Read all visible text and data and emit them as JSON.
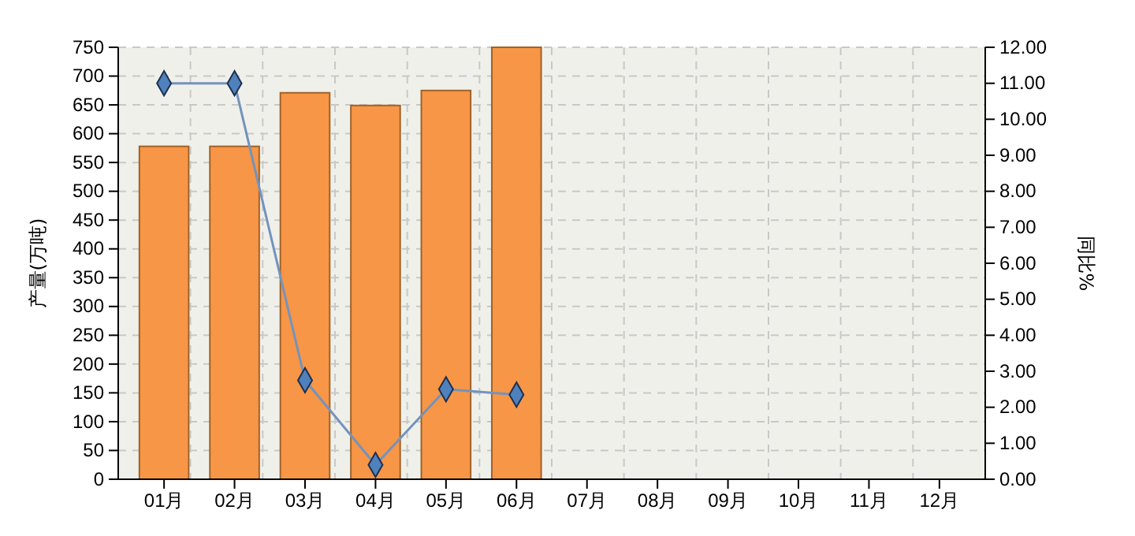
{
  "chart_data": {
    "type": "bar",
    "ylabel": "产量(万吨)",
    "y2label": "同比%",
    "categories": [
      "01月",
      "02月",
      "03月",
      "04月",
      "05月",
      "06月",
      "07月",
      "08月",
      "09月",
      "10月",
      "11月",
      "12月"
    ],
    "series": [
      {
        "color": "#f79646",
        "values": [
          578,
          578,
          671,
          649,
          675,
          750,
          null,
          null,
          null,
          null,
          null,
          null
        ]
      },
      {
        "type": "line",
        "axis": "y2",
        "color": "#7393bd",
        "marker": "diamond",
        "values": [
          11.0,
          11.0,
          2.75,
          0.4,
          2.5,
          2.35,
          null,
          null,
          null,
          null,
          null,
          null
        ]
      }
    ],
    "ylim": [
      0,
      750
    ],
    "yticks": [
      0,
      50,
      100,
      150,
      200,
      250,
      300,
      350,
      400,
      450,
      500,
      550,
      600,
      650,
      700,
      750
    ],
    "y2lim": [
      0,
      12
    ],
    "y2ticks": [
      {
        "value": 0,
        "label": "0.00"
      },
      {
        "value": 1,
        "label": "1.00"
      },
      {
        "value": 2,
        "label": "2.00"
      },
      {
        "value": 3,
        "label": "3.00"
      },
      {
        "value": 4,
        "label": "4.00"
      },
      {
        "value": 5,
        "label": "5.00"
      },
      {
        "value": 6,
        "label": "6.00"
      },
      {
        "value": 7,
        "label": "7.00"
      },
      {
        "value": 8,
        "label": "8.00"
      },
      {
        "value": 9,
        "label": "9.00"
      },
      {
        "value": 10,
        "label": "10.00"
      },
      {
        "value": 11,
        "label": "11.00"
      },
      {
        "value": 12,
        "label": "12.00"
      }
    ],
    "grid": true
  }
}
